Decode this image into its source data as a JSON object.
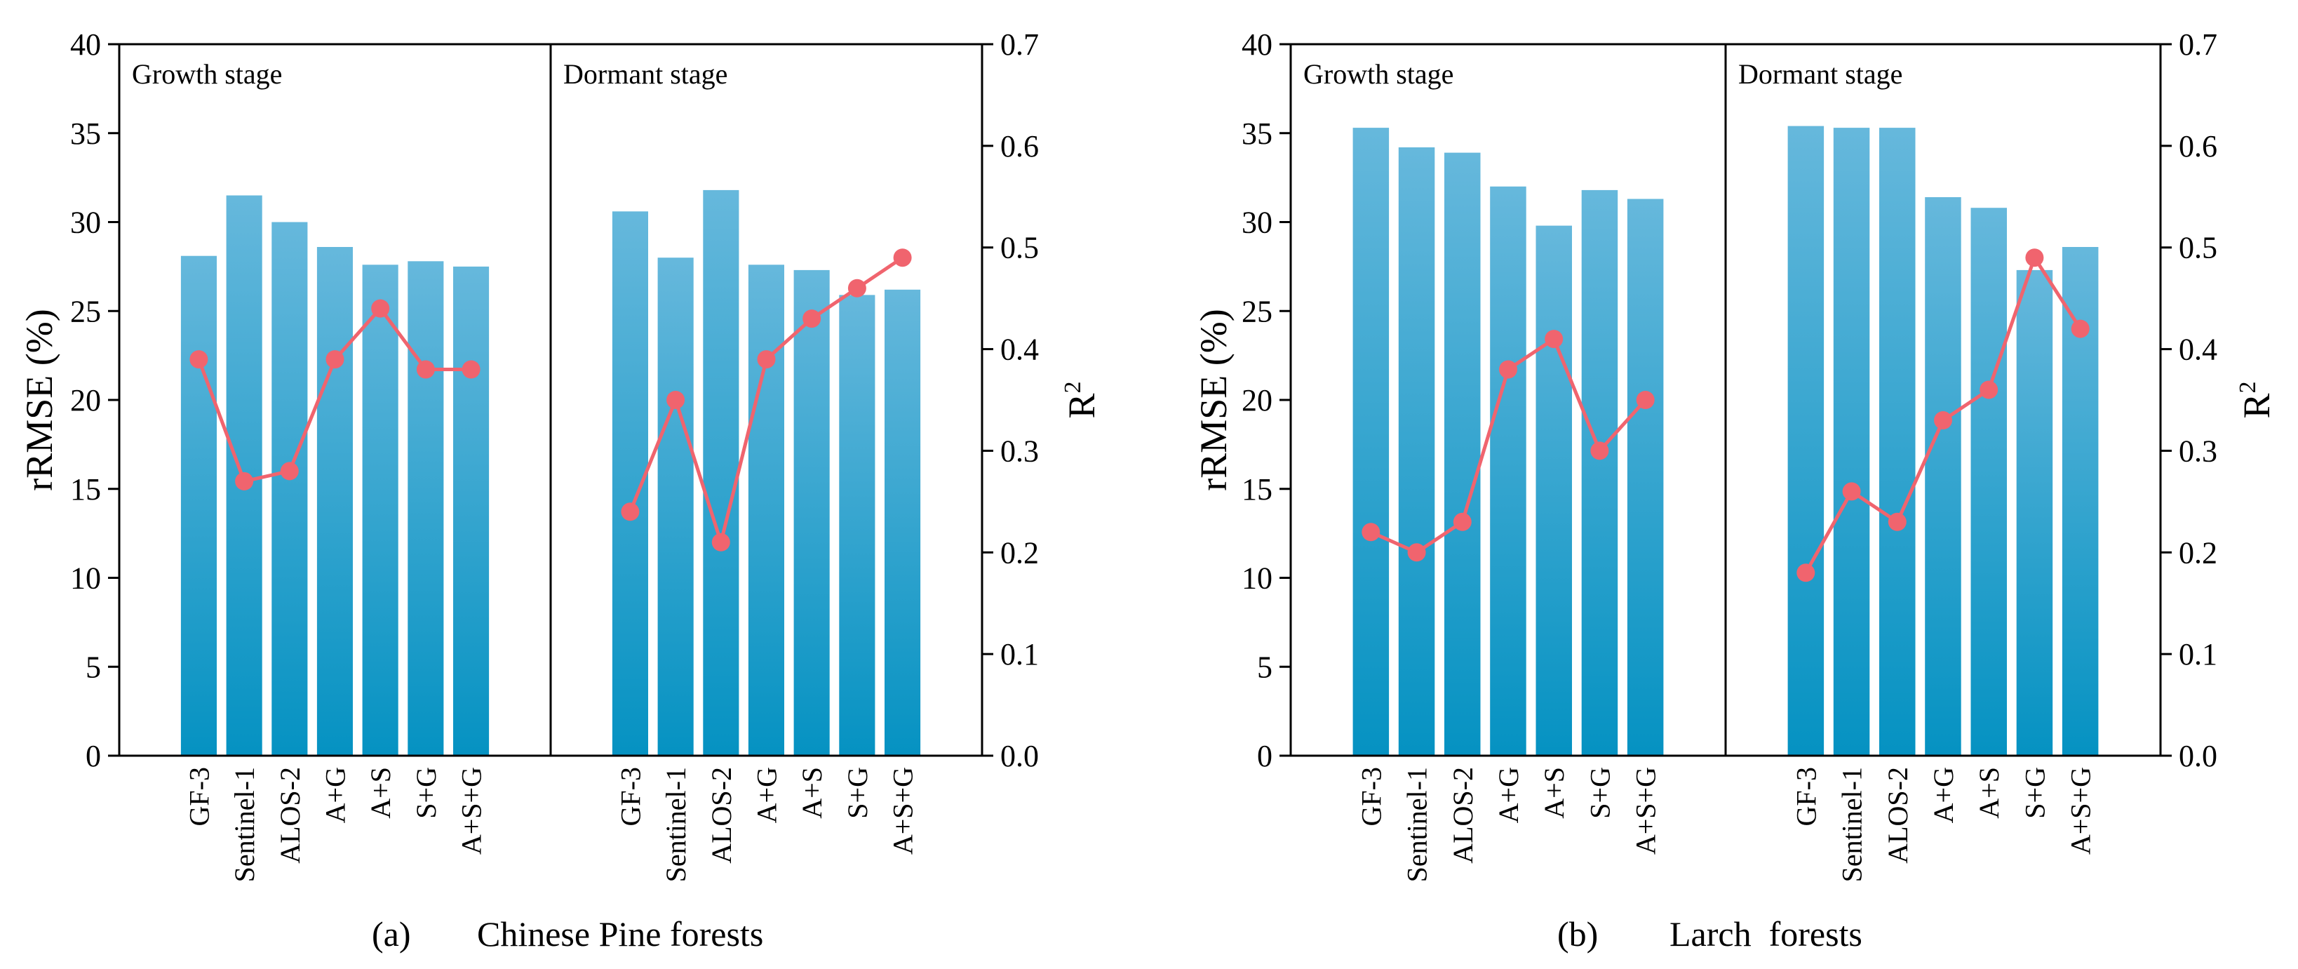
{
  "colors": {
    "bar_top": "#66b8dc",
    "bar_bottom": "#0592c2",
    "line": "#f0646e",
    "axis": "#000000"
  },
  "chart_data": [
    {
      "type": "bar",
      "caption_letter": "(a)",
      "caption_text": "Chinese Pine forests",
      "ylabel_left": "rRMSE (%)",
      "ylabel_right": "R",
      "ylabel_right_sup": "2",
      "ylim_left": [
        0,
        40
      ],
      "ylim_right": [
        0,
        0.7
      ],
      "yticks_left": [
        "0",
        "5",
        "10",
        "15",
        "20",
        "25",
        "30",
        "35",
        "40"
      ],
      "yticks_right": [
        "0.0",
        "0.1",
        "0.2",
        "0.3",
        "0.4",
        "0.5",
        "0.6",
        "0.7"
      ],
      "groups": [
        {
          "name": "Growth stage",
          "categories": [
            "GF-3",
            "Sentinel-1",
            "ALOS-2",
            "A+G",
            "A+S",
            "S+G",
            "A+S+G"
          ],
          "rrmse": [
            28.1,
            31.5,
            30.0,
            28.6,
            27.6,
            27.8,
            27.5
          ],
          "r2": [
            0.39,
            0.27,
            0.28,
            0.39,
            0.44,
            0.38,
            0.38
          ]
        },
        {
          "name": "Dormant stage",
          "categories": [
            "GF-3",
            "Sentinel-1",
            "ALOS-2",
            "A+G",
            "A+S",
            "S+G",
            "A+S+G"
          ],
          "rrmse": [
            30.6,
            28.0,
            31.8,
            27.6,
            27.3,
            25.9,
            26.2
          ],
          "r2": [
            0.24,
            0.35,
            0.21,
            0.39,
            0.43,
            0.46,
            0.49
          ]
        }
      ]
    },
    {
      "type": "bar",
      "caption_letter": "(b)",
      "caption_text": "Larch  forests",
      "ylabel_left": "rRMSE (%)",
      "ylabel_right": "R",
      "ylabel_right_sup": "2",
      "ylim_left": [
        0,
        40
      ],
      "ylim_right": [
        0,
        0.7
      ],
      "yticks_left": [
        "0",
        "5",
        "10",
        "15",
        "20",
        "25",
        "30",
        "35",
        "40"
      ],
      "yticks_right": [
        "0.0",
        "0.1",
        "0.2",
        "0.3",
        "0.4",
        "0.5",
        "0.6",
        "0.7"
      ],
      "groups": [
        {
          "name": "Growth stage",
          "categories": [
            "GF-3",
            "Sentinel-1",
            "ALOS-2",
            "A+G",
            "A+S",
            "S+G",
            "A+S+G"
          ],
          "rrmse": [
            35.3,
            34.2,
            33.9,
            32.0,
            29.8,
            31.8,
            31.3
          ],
          "r2": [
            0.22,
            0.2,
            0.23,
            0.38,
            0.41,
            0.3,
            0.35
          ]
        },
        {
          "name": "Dormant stage",
          "categories": [
            "GF-3",
            "Sentinel-1",
            "ALOS-2",
            "A+G",
            "A+S",
            "S+G",
            "A+S+G"
          ],
          "rrmse": [
            35.4,
            35.3,
            35.3,
            31.4,
            30.8,
            27.3,
            28.6
          ],
          "r2": [
            0.18,
            0.26,
            0.23,
            0.33,
            0.36,
            0.49,
            0.42
          ]
        }
      ]
    }
  ]
}
